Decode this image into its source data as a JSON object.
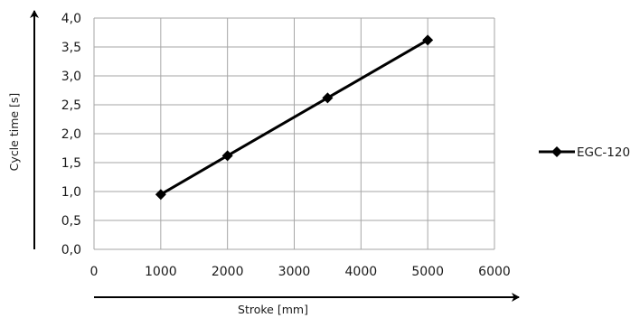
{
  "chart_data": {
    "type": "line",
    "xlabel": "Stroke [mm]",
    "ylabel": "Cycle time [s]",
    "xlim": [
      0,
      6000
    ],
    "ylim": [
      0.0,
      4.0
    ],
    "x_ticks": [
      "0",
      "1000",
      "2000",
      "3000",
      "4000",
      "5000",
      "6000"
    ],
    "y_ticks": [
      "0,0",
      "0,5",
      "1,0",
      "1,5",
      "2,0",
      "2,5",
      "3,0",
      "3,5",
      "4,0"
    ],
    "grid": true,
    "legend_position": "right",
    "series": [
      {
        "name": "EGC-120",
        "color": "#000000",
        "marker": "diamond",
        "x": [
          1000,
          2000,
          3500,
          5000
        ],
        "y": [
          0.95,
          1.62,
          2.62,
          3.62
        ]
      }
    ]
  }
}
